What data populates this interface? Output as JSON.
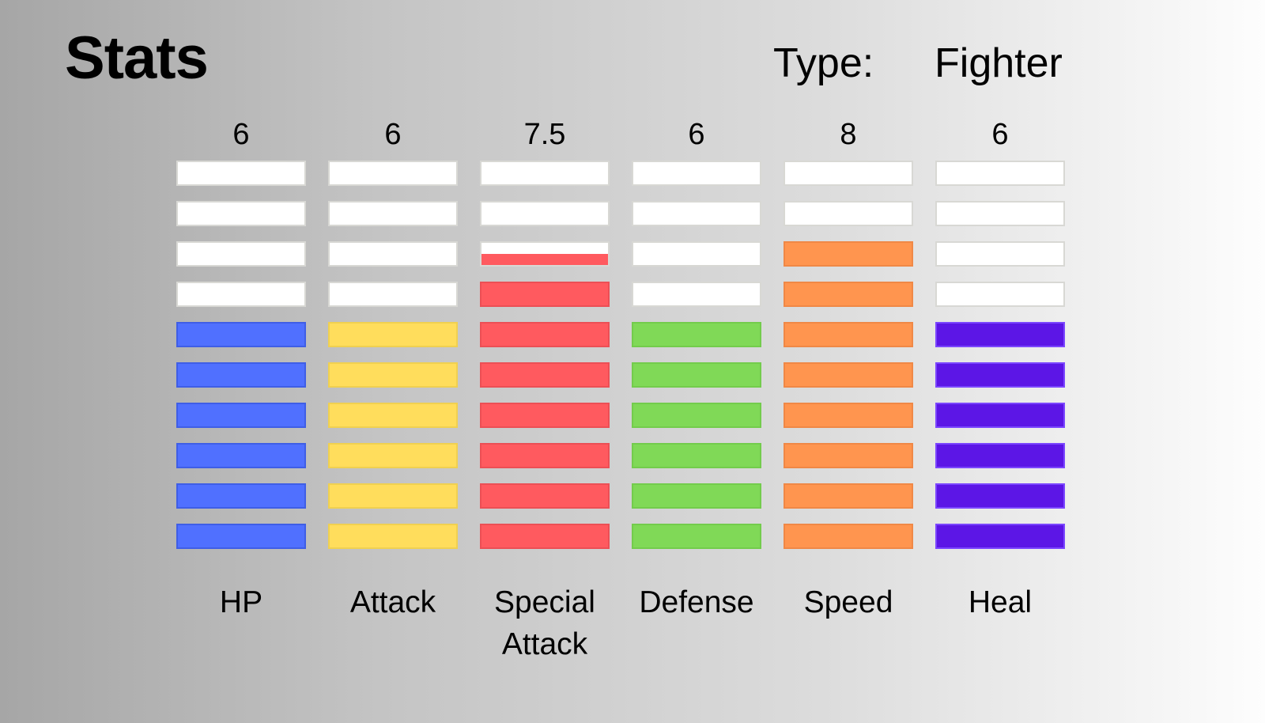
{
  "header": {
    "title": "Stats",
    "type_label": "Type:",
    "type_value": "Fighter"
  },
  "max_value": 10,
  "stats": [
    {
      "label": "HP",
      "value": "6",
      "amount": 6,
      "color": "#5070ff",
      "border": "#3f5ee6"
    },
    {
      "label": "Attack",
      "value": "6",
      "amount": 6,
      "color": "#ffdd5c",
      "border": "#f0d050"
    },
    {
      "label": "Special Attack",
      "value": "7.5",
      "amount": 7.5,
      "color": "#ff5a5f",
      "border": "#ec4f55"
    },
    {
      "label": "Defense",
      "value": "6",
      "amount": 6,
      "color": "#80d957",
      "border": "#73cc4c"
    },
    {
      "label": "Speed",
      "value": "8",
      "amount": 8,
      "color": "#ff954f",
      "border": "#f08846"
    },
    {
      "label": "Heal",
      "value": "6",
      "amount": 6,
      "color": "#5c16e6",
      "border": "#7b46ff"
    }
  ]
}
